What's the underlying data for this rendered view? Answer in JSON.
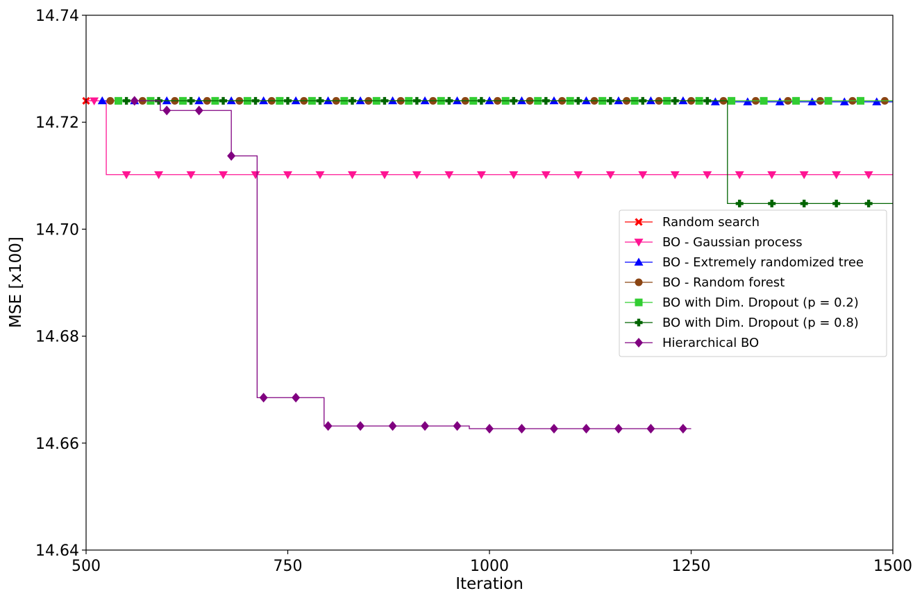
{
  "chart_data": {
    "type": "line",
    "xlabel": "Iteration",
    "ylabel": "MSE [x100]",
    "xlim": [
      500,
      1500
    ],
    "ylim": [
      14.64,
      14.74
    ],
    "xticks": [
      "500",
      "750",
      "1000",
      "1250",
      "1500"
    ],
    "yticks": [
      "14.64",
      "14.66",
      "14.68",
      "14.70",
      "14.72",
      "14.74"
    ],
    "grid": false,
    "legend_position": "center-right",
    "series": [
      {
        "name": "Random search",
        "color": "#ff0000",
        "marker": "x",
        "steps": [
          [
            500,
            14.724
          ],
          [
            510,
            14.724
          ]
        ],
        "markers_x": [
          500
        ]
      },
      {
        "name": "BO - Gaussian process",
        "color": "#ff1493",
        "marker": "triangle-down",
        "steps": [
          [
            500,
            14.724
          ],
          [
            525,
            14.724
          ],
          [
            525,
            14.7102
          ],
          [
            1500,
            14.7102
          ]
        ],
        "markers_x": [
          510,
          550,
          590,
          630,
          670,
          710,
          750,
          790,
          830,
          870,
          910,
          950,
          990,
          1030,
          1070,
          1110,
          1150,
          1190,
          1230,
          1270,
          1310,
          1350,
          1390,
          1430,
          1470
        ]
      },
      {
        "name": "BO - Extremely randomized tree",
        "color": "#0000ff",
        "marker": "triangle-up",
        "steps": [
          [
            520,
            14.724
          ],
          [
            1270,
            14.724
          ],
          [
            1270,
            14.7238
          ],
          [
            1500,
            14.7238
          ]
        ],
        "markers_x": [
          520,
          560,
          600,
          640,
          680,
          720,
          760,
          800,
          840,
          880,
          920,
          960,
          1000,
          1040,
          1080,
          1120,
          1160,
          1200,
          1240,
          1280,
          1320,
          1360,
          1400,
          1440,
          1480
        ]
      },
      {
        "name": "BO - Random forest",
        "color": "#8b4513",
        "marker": "circle",
        "steps": [
          [
            530,
            14.724
          ],
          [
            1500,
            14.724
          ]
        ],
        "markers_x": [
          530,
          570,
          610,
          650,
          690,
          730,
          770,
          810,
          850,
          890,
          930,
          970,
          1010,
          1050,
          1090,
          1130,
          1170,
          1210,
          1250,
          1290,
          1330,
          1370,
          1410,
          1450,
          1490
        ]
      },
      {
        "name": "BO with Dim. Dropout (p = 0.2)",
        "color": "#32cd32",
        "marker": "square",
        "steps": [
          [
            540,
            14.724
          ],
          [
            1500,
            14.724
          ]
        ],
        "markers_x": [
          540,
          580,
          620,
          660,
          700,
          740,
          780,
          820,
          860,
          900,
          940,
          980,
          1020,
          1060,
          1100,
          1140,
          1180,
          1220,
          1260,
          1300,
          1340,
          1380,
          1420,
          1460
        ]
      },
      {
        "name": "BO with Dim. Dropout (p = 0.8)",
        "color": "#006400",
        "marker": "plus",
        "steps": [
          [
            550,
            14.724
          ],
          [
            1295,
            14.724
          ],
          [
            1295,
            14.7048
          ],
          [
            1500,
            14.7048
          ]
        ],
        "markers_x": [
          550,
          590,
          630,
          670,
          710,
          750,
          790,
          830,
          870,
          910,
          950,
          990,
          1030,
          1070,
          1110,
          1150,
          1190,
          1230,
          1270,
          1310,
          1350,
          1390,
          1430,
          1470
        ]
      },
      {
        "name": "Hierarchical BO",
        "color": "#800080",
        "marker": "diamond",
        "steps": [
          [
            560,
            14.724
          ],
          [
            592,
            14.724
          ],
          [
            592,
            14.7222
          ],
          [
            680,
            14.7222
          ],
          [
            680,
            14.7137
          ],
          [
            712,
            14.7137
          ],
          [
            712,
            14.6685
          ],
          [
            795,
            14.6685
          ],
          [
            795,
            14.6632
          ],
          [
            975,
            14.6632
          ],
          [
            975,
            14.6627
          ],
          [
            1250,
            14.6627
          ]
        ],
        "markers_x": [
          560,
          600,
          640,
          680,
          720,
          760,
          800,
          840,
          880,
          920,
          960,
          1000,
          1040,
          1080,
          1120,
          1160,
          1200,
          1240
        ]
      }
    ]
  }
}
